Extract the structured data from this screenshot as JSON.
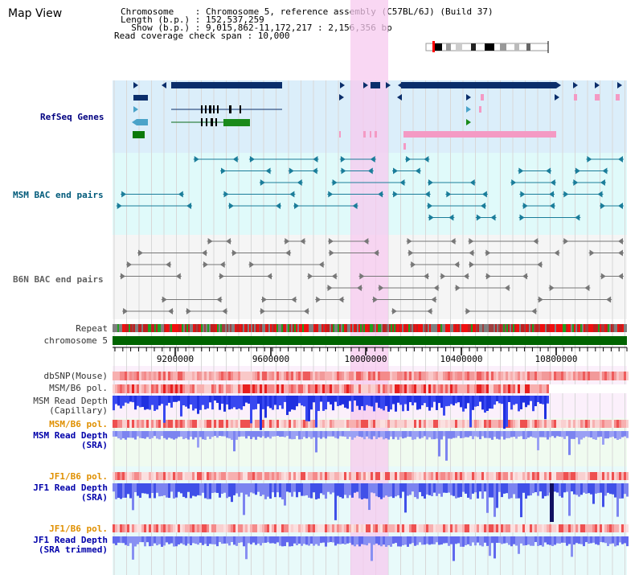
{
  "window": {
    "title": "Map View"
  },
  "info": {
    "chromosome_line": "Chromosome    : Chromosome 5, reference assembly (C57BL/6J) (Build 37)",
    "length_line": "Length (b.p.) : 152,537,259",
    "show_line": "  Show (b.p.) : 9,015,862-11,172,217 : 2,156,356 bp",
    "read_line": "Read coverage check span : 10,000"
  },
  "tracks": {
    "refseq": "RefSeq Genes",
    "msm_bac": "MSM BAC end pairs",
    "b6n_bac": "B6N BAC end pairs",
    "repeat": "Repeat",
    "chromosome": "chromosome 5",
    "dbsnp": "dbSNP(Mouse)",
    "msm_b6_pol_1": "MSM/B6 pol.",
    "msm_depth_cap_1": "MSM Read Depth",
    "msm_depth_cap_2": "(Capillary)",
    "msm_b6_pol_2": "MSM/B6 pol.",
    "msm_depth_sra_1": "MSM Read Depth",
    "msm_depth_sra_2": "(SRA)",
    "jf1_b6_pol_1": "JF1/B6 pol.",
    "jf1_depth_sra_1": "JF1 Read Depth",
    "jf1_depth_sra_2": "(SRA)",
    "jf1_b6_pol_2": "JF1/B6 pol.",
    "jf1_depth_trim_1": "JF1 Read Depth",
    "jf1_depth_trim_2": "(SRA trimmed)"
  },
  "axis": {
    "ticks": [
      "9200000",
      "9600000",
      "10000000",
      "10400000",
      "10800000"
    ]
  },
  "colors": {
    "refseq_band": "#dbeefa",
    "msm_band": "#e0fafa",
    "b6n_band": "#f5f5f5",
    "highlight": "#f7c9ef",
    "refseq_label": "#000080",
    "msm_label": "#005a7a",
    "b6n_label": "#606060",
    "pol_label": "#e09000",
    "depth_label": "#0000aa",
    "chromosome_bar": "#006400"
  }
}
